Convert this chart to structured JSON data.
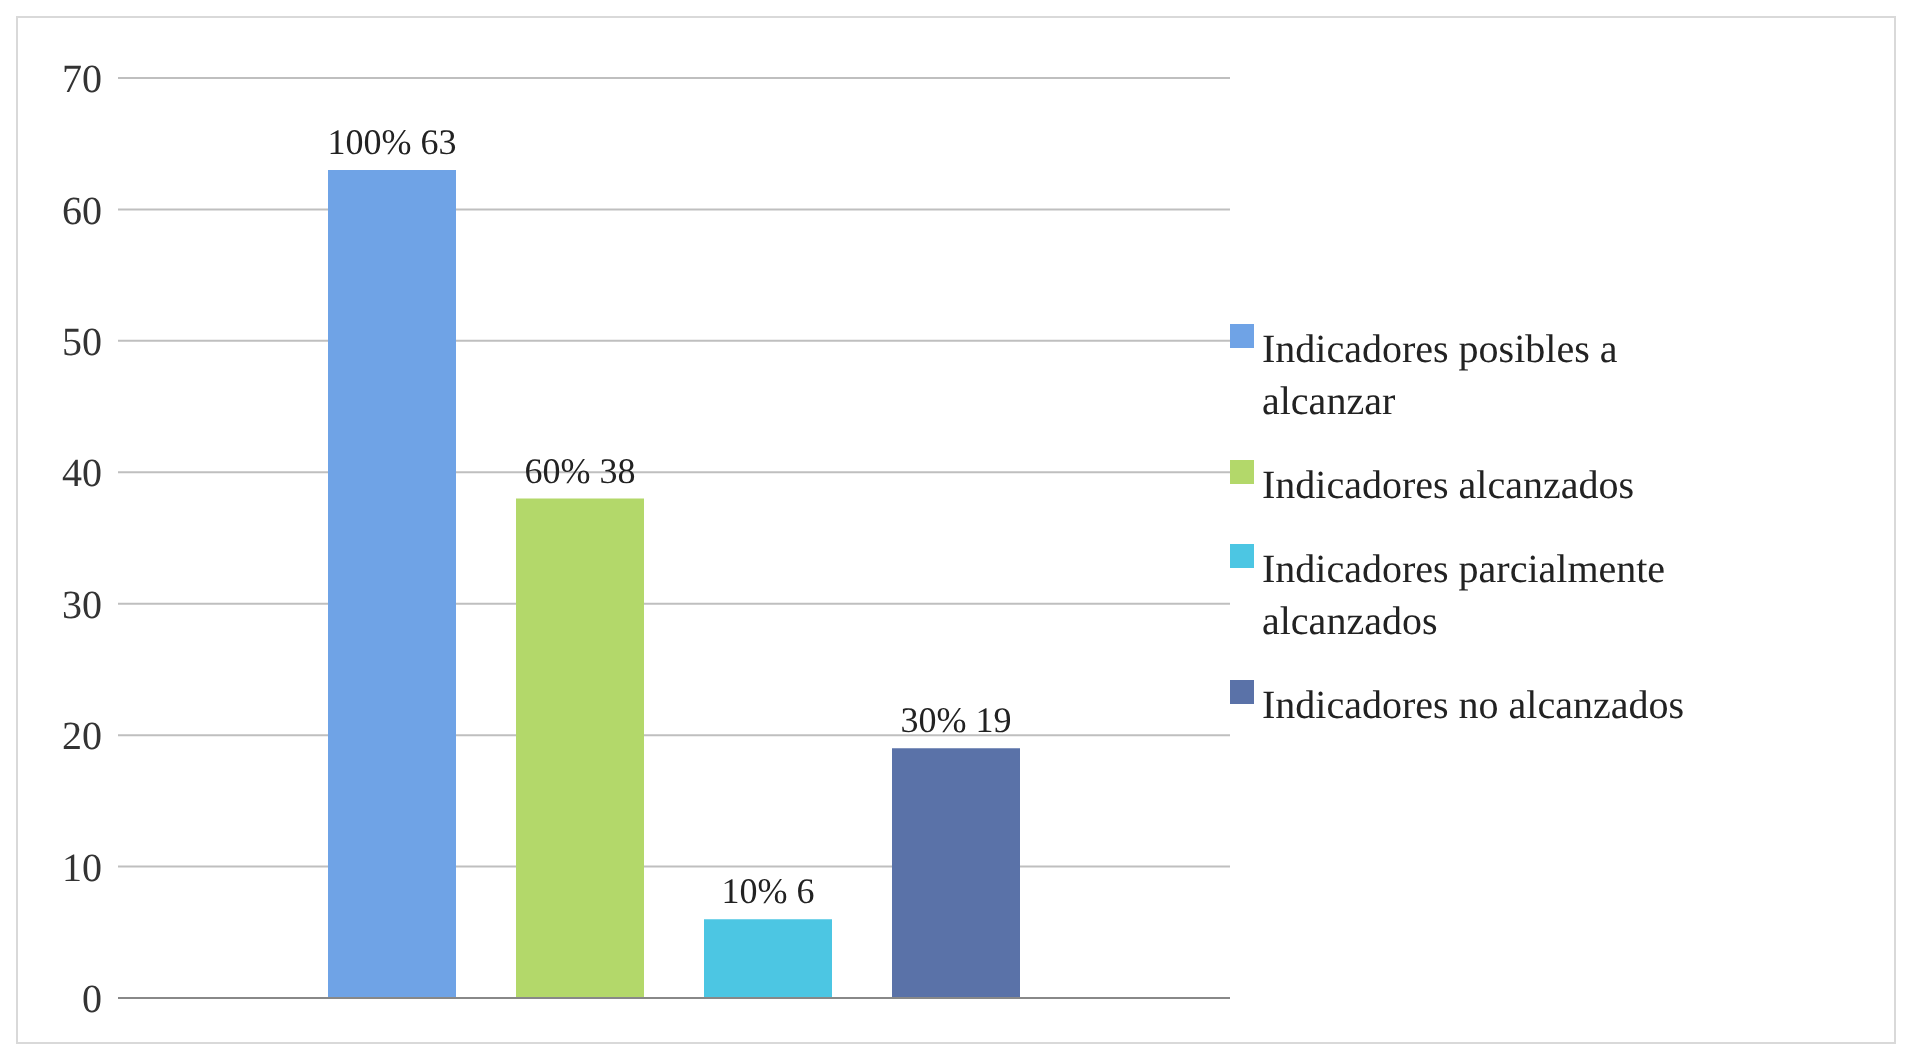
{
  "chart_data": {
    "type": "bar",
    "categories": [
      null
    ],
    "series": [
      {
        "name": "Indicadores posibles a alcanzar",
        "color": "#6fa3e6",
        "values": [
          63
        ],
        "value_labels": [
          "100% 63"
        ]
      },
      {
        "name": "Indicadores alcanzados",
        "color": "#b3d86a",
        "values": [
          38
        ],
        "value_labels": [
          "60% 38"
        ]
      },
      {
        "name": "Indicadores parcialmente alcanzados",
        "color": "#4cc6e3",
        "values": [
          6
        ],
        "value_labels": [
          "10% 6"
        ]
      },
      {
        "name": "Indicadores no alcanzados",
        "color": "#5a72a8",
        "values": [
          19
        ],
        "value_labels": [
          "30% 19"
        ]
      }
    ],
    "ylim": [
      0,
      70
    ],
    "yticks": [
      0,
      10,
      20,
      30,
      40,
      50,
      60,
      70
    ],
    "grid": "y",
    "legend": "right"
  }
}
